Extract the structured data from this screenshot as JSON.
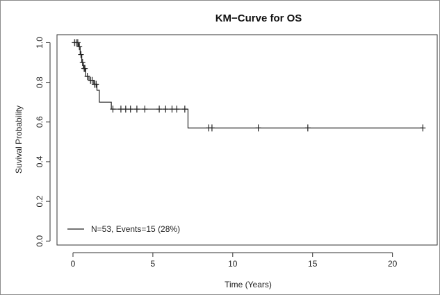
{
  "chart_data": {
    "type": "line",
    "subtype": "kaplan-meier",
    "title": "KM−Curve for OS",
    "xlabel": "Time (Years)",
    "ylabel": "Suvival Probability",
    "xlim": [
      -1,
      22.8
    ],
    "ylim": [
      -0.02,
      1.04
    ],
    "x_ticks": [
      0,
      5,
      10,
      15,
      20
    ],
    "x_tick_labels": [
      "0",
      "5",
      "10",
      "15",
      "20"
    ],
    "y_ticks": [
      0.0,
      0.2,
      0.4,
      0.6,
      0.8,
      1.0
    ],
    "y_tick_labels": [
      "0.0",
      "0.2",
      "0.4",
      "0.6",
      "0.8",
      "1.0"
    ],
    "grid": false,
    "legend_position": "bottom-left",
    "series": [
      {
        "name": "N=53, Events=15 (28%)",
        "color": "#222222",
        "steps": [
          {
            "x": 0.0,
            "y": 1.0
          },
          {
            "x": 0.35,
            "y": 0.98
          },
          {
            "x": 0.45,
            "y": 0.94
          },
          {
            "x": 0.55,
            "y": 0.9
          },
          {
            "x": 0.65,
            "y": 0.87
          },
          {
            "x": 0.8,
            "y": 0.83
          },
          {
            "x": 1.0,
            "y": 0.81
          },
          {
            "x": 1.3,
            "y": 0.79
          },
          {
            "x": 1.5,
            "y": 0.76
          },
          {
            "x": 1.65,
            "y": 0.7
          },
          {
            "x": 2.4,
            "y": 0.665
          },
          {
            "x": 7.2,
            "y": 0.57
          }
        ],
        "end_x": 21.9,
        "censored": [
          {
            "x": 0.1,
            "y": 1.0
          },
          {
            "x": 0.2,
            "y": 1.0
          },
          {
            "x": 0.3,
            "y": 1.0
          },
          {
            "x": 0.4,
            "y": 0.98
          },
          {
            "x": 0.5,
            "y": 0.94
          },
          {
            "x": 0.6,
            "y": 0.9
          },
          {
            "x": 0.7,
            "y": 0.87
          },
          {
            "x": 0.75,
            "y": 0.87
          },
          {
            "x": 0.9,
            "y": 0.83
          },
          {
            "x": 1.1,
            "y": 0.81
          },
          {
            "x": 1.2,
            "y": 0.81
          },
          {
            "x": 1.35,
            "y": 0.79
          },
          {
            "x": 1.45,
            "y": 0.79
          },
          {
            "x": 2.5,
            "y": 0.665
          },
          {
            "x": 3.0,
            "y": 0.665
          },
          {
            "x": 3.3,
            "y": 0.665
          },
          {
            "x": 3.6,
            "y": 0.665
          },
          {
            "x": 4.0,
            "y": 0.665
          },
          {
            "x": 4.5,
            "y": 0.665
          },
          {
            "x": 5.4,
            "y": 0.665
          },
          {
            "x": 5.8,
            "y": 0.665
          },
          {
            "x": 6.2,
            "y": 0.665
          },
          {
            "x": 6.5,
            "y": 0.665
          },
          {
            "x": 7.0,
            "y": 0.665
          },
          {
            "x": 8.5,
            "y": 0.57
          },
          {
            "x": 8.7,
            "y": 0.57
          },
          {
            "x": 11.6,
            "y": 0.57
          },
          {
            "x": 14.7,
            "y": 0.57
          },
          {
            "x": 21.9,
            "y": 0.57
          }
        ]
      }
    ]
  }
}
